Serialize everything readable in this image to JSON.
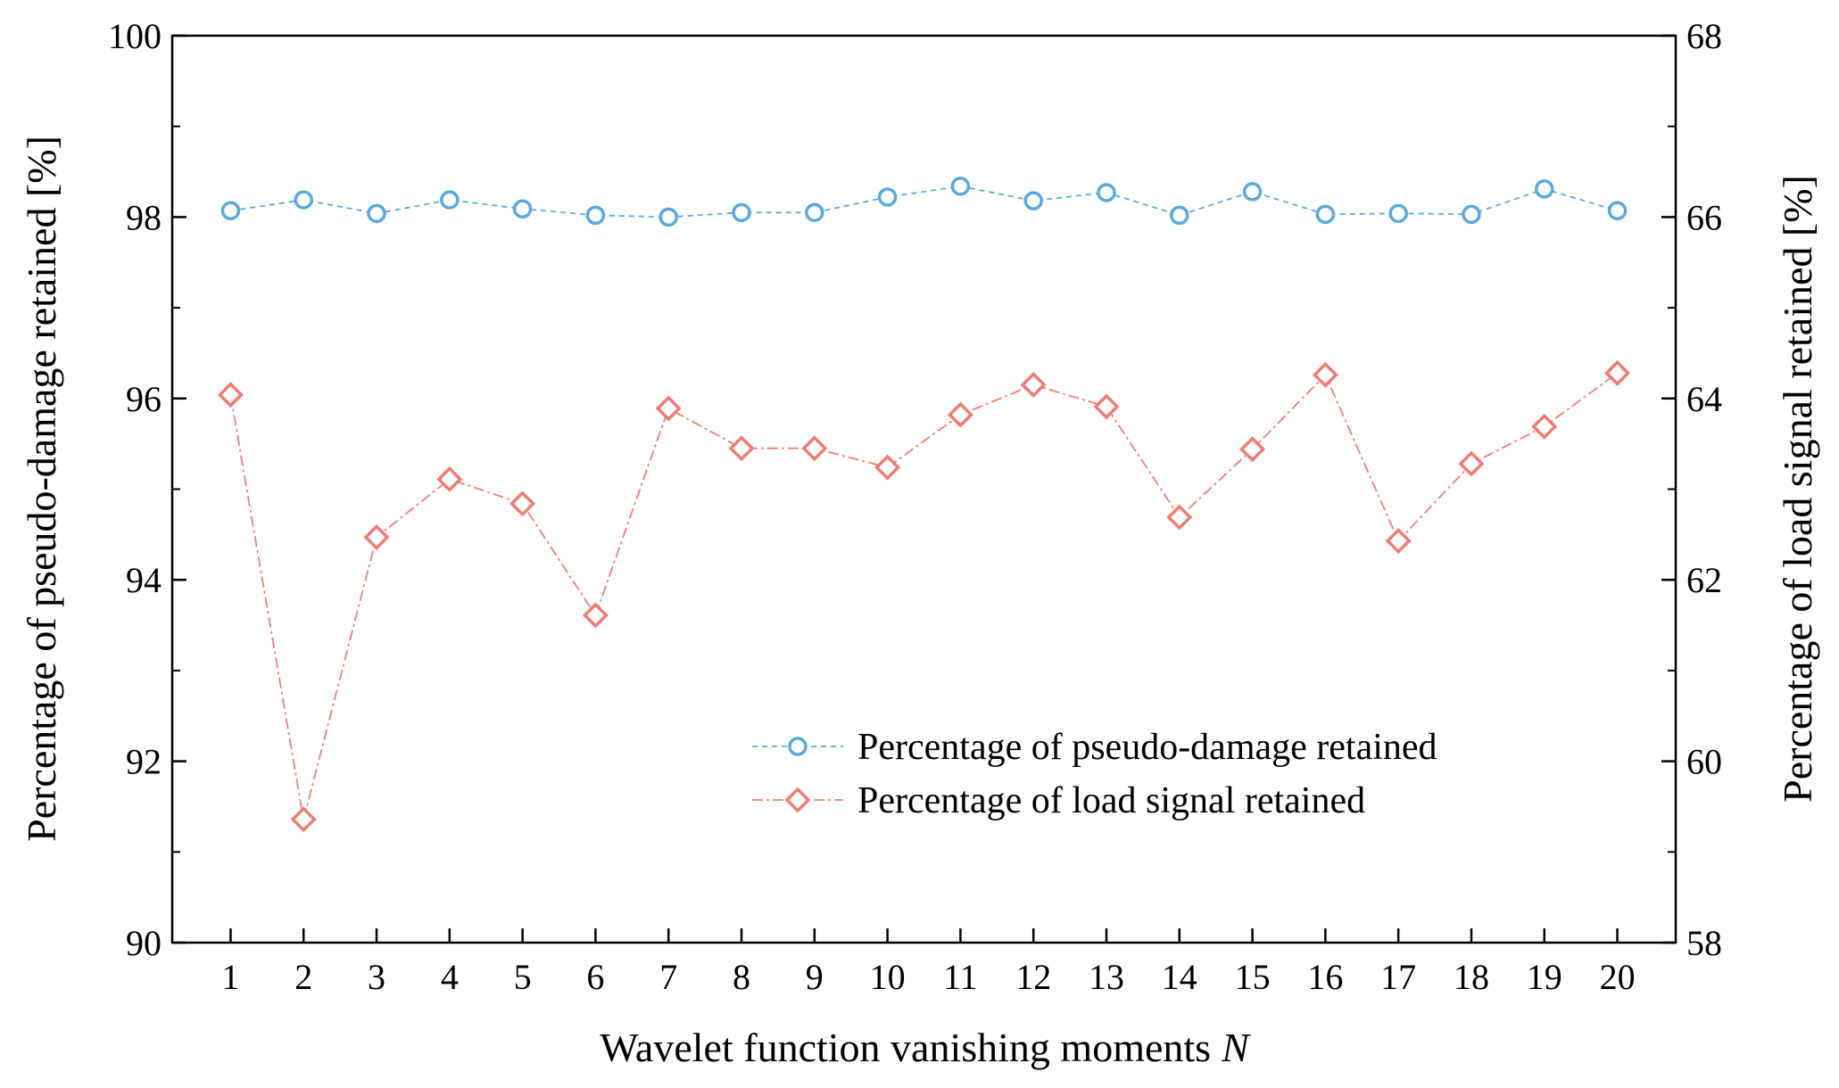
{
  "chart_data": {
    "type": "line",
    "title": "",
    "xlabel": "Wavelet function vanishing moments",
    "xlabel_var": "N",
    "ylabel_left": "Percentage of pseudo-damage retained [%]",
    "ylabel_right": "Percentage of load signal retained [%]",
    "x": [
      1,
      2,
      3,
      4,
      5,
      6,
      7,
      8,
      9,
      10,
      11,
      12,
      13,
      14,
      15,
      16,
      17,
      18,
      19,
      20
    ],
    "xlim": [
      0.2,
      20.8
    ],
    "ylim_left": [
      90,
      100
    ],
    "ylim_right": [
      58,
      68
    ],
    "yticks_left": [
      90,
      92,
      94,
      96,
      98,
      100
    ],
    "yticks_right": [
      58,
      60,
      62,
      64,
      66,
      68
    ],
    "series": [
      {
        "name": "Percentage of pseudo-damage retained",
        "axis": "left",
        "marker": "circle",
        "color": "#5AA9DD",
        "values": [
          98.07,
          98.19,
          98.04,
          98.19,
          98.09,
          98.02,
          98.0,
          98.05,
          98.05,
          98.22,
          98.34,
          98.18,
          98.27,
          98.02,
          98.28,
          98.03,
          98.04,
          98.03,
          98.31,
          98.07
        ]
      },
      {
        "name": "Percentage of load signal retained",
        "axis": "right",
        "marker": "diamond",
        "color": "#F07C74",
        "values": [
          64.04,
          59.36,
          62.47,
          63.11,
          62.84,
          61.61,
          63.89,
          63.45,
          63.45,
          63.24,
          63.82,
          64.15,
          63.91,
          62.69,
          63.44,
          64.26,
          62.43,
          63.28,
          63.69,
          64.28
        ]
      }
    ],
    "legend_position": "lower-right"
  }
}
